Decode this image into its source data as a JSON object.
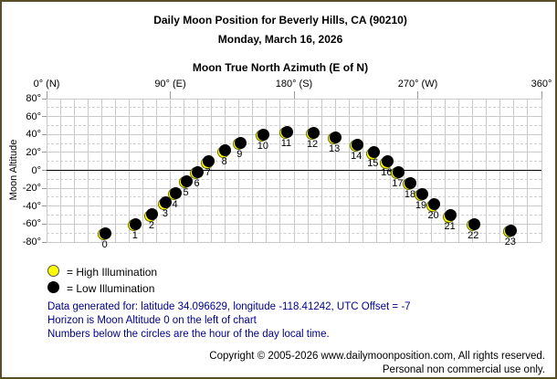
{
  "header": {
    "title_line1": "Daily Moon Position for Beverly Hills, CA (90210)",
    "title_line2": "Monday, March 16, 2026"
  },
  "chart_data": {
    "type": "scatter",
    "title": "Daily Moon Position for Beverly Hills, CA (90210)",
    "subtitle": "Monday, March 16, 2026",
    "xlabel": "Moon True North Azimuth (E of N)",
    "ylabel": "Moon Altitude",
    "xlim": [
      0,
      360
    ],
    "ylim": [
      -80,
      80
    ],
    "grid": "on, minor every 10 degrees",
    "legend_position": "below-left",
    "x_ticks": [
      {
        "value": 0,
        "label": "0° (N)"
      },
      {
        "value": 90,
        "label": "90° (E)"
      },
      {
        "value": 180,
        "label": "180° (S)"
      },
      {
        "value": 270,
        "label": "270° (W)"
      },
      {
        "value": 360,
        "label": "360°"
      }
    ],
    "y_ticks": [
      {
        "value": 80,
        "label": "80°"
      },
      {
        "value": 60,
        "label": "60°"
      },
      {
        "value": 40,
        "label": "40°"
      },
      {
        "value": 20,
        "label": "20°"
      },
      {
        "value": 0,
        "label": "0°"
      },
      {
        "value": -20,
        "label": "-20°"
      },
      {
        "value": -40,
        "label": "-40°"
      },
      {
        "value": -60,
        "label": "-60°"
      },
      {
        "value": -80,
        "label": "-80°"
      }
    ],
    "minor_grid_altitudes": [
      70,
      50,
      30,
      10,
      -10,
      -30,
      -50,
      -70
    ],
    "points": [
      {
        "hour": 0,
        "azimuth": 43,
        "altitude": -70
      },
      {
        "hour": 1,
        "azimuth": 65,
        "altitude": -60
      },
      {
        "hour": 2,
        "azimuth": 77,
        "altitude": -49
      },
      {
        "hour": 3,
        "azimuth": 87,
        "altitude": -36
      },
      {
        "hour": 4,
        "azimuth": 94,
        "altitude": -25
      },
      {
        "hour": 5,
        "azimuth": 102,
        "altitude": -12
      },
      {
        "hour": 6,
        "azimuth": 110,
        "altitude": -2
      },
      {
        "hour": 7,
        "azimuth": 118,
        "altitude": 10
      },
      {
        "hour": 8,
        "azimuth": 130,
        "altitude": 22
      },
      {
        "hour": 9,
        "azimuth": 141,
        "altitude": 31
      },
      {
        "hour": 10,
        "azimuth": 158,
        "altitude": 40
      },
      {
        "hour": 11,
        "azimuth": 175,
        "altitude": 43
      },
      {
        "hour": 12,
        "azimuth": 194,
        "altitude": 42
      },
      {
        "hour": 13,
        "azimuth": 210,
        "altitude": 37
      },
      {
        "hour": 14,
        "azimuth": 226,
        "altitude": 29
      },
      {
        "hour": 15,
        "azimuth": 238,
        "altitude": 20
      },
      {
        "hour": 16,
        "azimuth": 248,
        "altitude": 10
      },
      {
        "hour": 17,
        "azimuth": 256,
        "altitude": -2
      },
      {
        "hour": 18,
        "azimuth": 265,
        "altitude": -14
      },
      {
        "hour": 19,
        "azimuth": 273,
        "altitude": -26
      },
      {
        "hour": 20,
        "azimuth": 282,
        "altitude": -38
      },
      {
        "hour": 21,
        "azimuth": 294,
        "altitude": -50
      },
      {
        "hour": 22,
        "azimuth": 311,
        "altitude": -60
      },
      {
        "hour": 23,
        "azimuth": 338,
        "altitude": -67
      }
    ],
    "colors": {
      "high_illumination": "#ffff00",
      "low_illumination": "#000000",
      "horizon_line": "#000000",
      "grid": "#c9c9c9",
      "note_text": "#00008b",
      "border": "#5a4e28"
    }
  },
  "legend": {
    "high_label": "= High Illumination",
    "low_label": "= Low Illumination"
  },
  "notes": {
    "line1": "Data generated for: latitude 34.096629, longitude -118.41242, UTC Offset = -7",
    "line2": "Horizon is Moon Altitude 0 on the left of chart",
    "line3": "Numbers below the circles are the hour of the day local time."
  },
  "footer": {
    "copyright": "Copyright © 2005-2026 www.dailymoonposition.com, All rights reserved.",
    "usage": "Personal non commercial use only."
  }
}
